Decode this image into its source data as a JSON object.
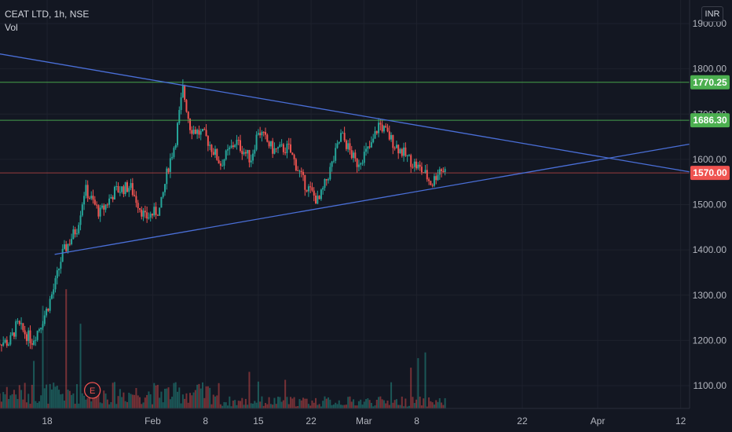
{
  "header": {
    "title": "CEAT LTD, 1h, NSE",
    "volume_label": "Vol",
    "currency": "INR"
  },
  "event_marker": "E",
  "colors": {
    "background": "#131722",
    "grid": "#1e222d",
    "up": "#26a69a",
    "down": "#ef5350",
    "trendline": "#4a6fd8",
    "resistance": "#4caf50",
    "current_price": "#ef5350"
  },
  "chart_data": {
    "type": "candlestick",
    "symbol": "CEAT LTD",
    "interval": "1h",
    "exchange": "NSE",
    "y_axis": {
      "ticks": [
        "1900.00",
        "1800.00",
        "1700.00",
        "1600.00",
        "1500.00",
        "1400.00",
        "1300.00",
        "1200.00",
        "1100.00"
      ],
      "ylim": [
        1050,
        1920
      ]
    },
    "x_axis": {
      "ticks": [
        "18",
        "Feb",
        "8",
        "15",
        "22",
        "Mar",
        "8",
        "22",
        "Apr",
        "12"
      ]
    },
    "price_labels": [
      {
        "value": "1770.25",
        "color": "#4caf50"
      },
      {
        "value": "1686.30",
        "color": "#4caf50"
      },
      {
        "value": "1570.00",
        "color": "#ef5350"
      }
    ],
    "horizontal_lines": [
      1770.25,
      1686.3,
      1570.0
    ],
    "trendlines": [
      {
        "name": "descending resistance",
        "from": [
          "2021-01-11",
          1835
        ],
        "to": [
          "2021-04-14",
          1570
        ]
      },
      {
        "name": "ascending support",
        "from": [
          "2021-01-19",
          1390
        ],
        "to": [
          "2021-04-14",
          1636
        ]
      }
    ],
    "price_path": [
      [
        "2021-01-11",
        1200
      ],
      [
        "2021-01-13",
        1195
      ],
      [
        "2021-01-14",
        1235
      ],
      [
        "2021-01-16",
        1200
      ],
      [
        "2021-01-17",
        1230
      ],
      [
        "2021-01-18",
        1270
      ],
      [
        "2021-01-19",
        1320
      ],
      [
        "2021-01-20",
        1390
      ],
      [
        "2021-01-22",
        1450
      ],
      [
        "2021-01-23",
        1535
      ],
      [
        "2021-01-25",
        1480
      ],
      [
        "2021-01-27",
        1530
      ],
      [
        "2021-01-29",
        1540
      ],
      [
        "2021-01-31",
        1470
      ],
      [
        "2021-02-02",
        1490
      ],
      [
        "2021-02-03",
        1580
      ],
      [
        "2021-02-04",
        1640
      ],
      [
        "2021-02-05",
        1755
      ],
      [
        "2021-02-06",
        1670
      ],
      [
        "2021-02-08",
        1650
      ],
      [
        "2021-02-10",
        1590
      ],
      [
        "2021-02-12",
        1640
      ],
      [
        "2021-02-14",
        1600
      ],
      [
        "2021-02-15",
        1665
      ],
      [
        "2021-02-17",
        1620
      ],
      [
        "2021-02-19",
        1625
      ],
      [
        "2021-02-21",
        1550
      ],
      [
        "2021-02-23",
        1505
      ],
      [
        "2021-02-25",
        1600
      ],
      [
        "2021-02-26",
        1655
      ],
      [
        "2021-02-28",
        1590
      ],
      [
        "2021-03-02",
        1630
      ],
      [
        "2021-03-03",
        1680
      ],
      [
        "2021-03-05",
        1635
      ],
      [
        "2021-03-07",
        1600
      ],
      [
        "2021-03-09",
        1570
      ],
      [
        "2021-03-10",
        1545
      ],
      [
        "2021-03-11",
        1580
      ],
      [
        "2021-03-12",
        1572
      ]
    ]
  }
}
